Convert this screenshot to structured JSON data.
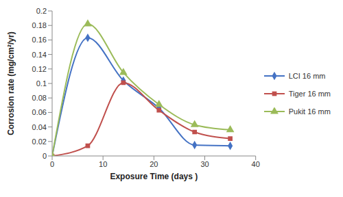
{
  "chart_data": {
    "type": "line",
    "x_label": "Exposure Time (days )",
    "y_label": "Corrosion rate (mg/cm²/yr)",
    "x": [
      0,
      7,
      14,
      21,
      28,
      35
    ],
    "series": [
      {
        "name": "LCI 16 mm",
        "color": "#4472c4",
        "marker": "diamond",
        "values": [
          0,
          0.163,
          0.104,
          0.066,
          0.015,
          0.014
        ]
      },
      {
        "name": "Tiger 16 mm",
        "color": "#c0504d",
        "marker": "square",
        "values": [
          0,
          0.014,
          0.101,
          0.063,
          0.033,
          0.024
        ]
      },
      {
        "name": "Pukit 16 mm",
        "color": "#9bbb59",
        "marker": "triangle",
        "values": [
          0,
          0.182,
          0.115,
          0.071,
          0.043,
          0.036
        ]
      }
    ],
    "xlim": [
      0,
      40
    ],
    "xticks": [
      0,
      10,
      20,
      30,
      40
    ],
    "ylim": [
      0,
      0.2
    ],
    "yticks": [
      0,
      0.02,
      0.04,
      0.06,
      0.08,
      0.1,
      0.12,
      0.14,
      0.16,
      0.18,
      0.2
    ],
    "grid": false,
    "legend": "right"
  }
}
